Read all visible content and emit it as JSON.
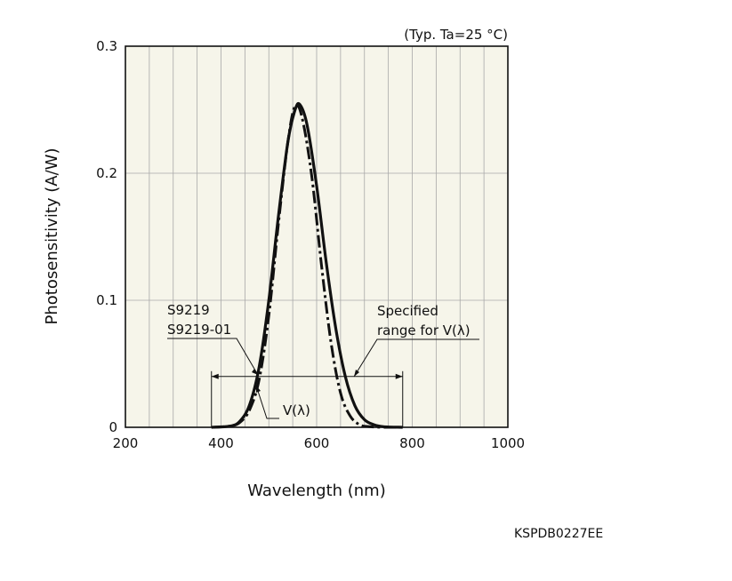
{
  "chart_data": {
    "type": "line",
    "title": "",
    "condition": "(Typ. Ta=25 °C)",
    "xlabel": "Wavelength (nm)",
    "ylabel": "Photosensitivity (A/W)",
    "xlim": [
      200,
      1000
    ],
    "ylim": [
      0,
      0.3
    ],
    "x_ticks": [
      200,
      400,
      600,
      800,
      1000
    ],
    "y_ticks": [
      0,
      0.1,
      0.2,
      0.3
    ],
    "y_tick_labels": [
      "0",
      "0.1",
      "0.2",
      "0.3"
    ],
    "grid": true,
    "series": [
      {
        "name": "S9219 / S9219-01",
        "line_style": "solid",
        "x": [
          380,
          420,
          440,
          460,
          480,
          500,
          520,
          540,
          555,
          565,
          580,
          600,
          620,
          640,
          660,
          680,
          700,
          720,
          740,
          780
        ],
        "y": [
          0,
          0.001,
          0.005,
          0.018,
          0.048,
          0.1,
          0.166,
          0.225,
          0.25,
          0.254,
          0.238,
          0.19,
          0.13,
          0.078,
          0.04,
          0.017,
          0.006,
          0.002,
          0.0005,
          0
        ]
      },
      {
        "name": "V(λ)",
        "line_style": "dash-dot",
        "x": [
          380,
          420,
          440,
          460,
          480,
          500,
          520,
          540,
          555,
          570,
          590,
          610,
          630,
          650,
          670,
          690,
          710,
          740,
          780
        ],
        "y": [
          0,
          0.001,
          0.004,
          0.014,
          0.038,
          0.088,
          0.16,
          0.225,
          0.253,
          0.243,
          0.197,
          0.128,
          0.067,
          0.027,
          0.009,
          0.002,
          0.0005,
          0,
          0
        ]
      }
    ],
    "annotations": {
      "device_label_1": "S9219",
      "device_label_2": "S9219-01",
      "vlambda_label": "V(λ)",
      "range_label_1": "Specified",
      "range_label_2": "range for V(λ)",
      "range_start_nm": 380,
      "range_end_nm": 780,
      "range_arrow_y": 0.04
    }
  },
  "document_code": "KSPDB0227EE"
}
